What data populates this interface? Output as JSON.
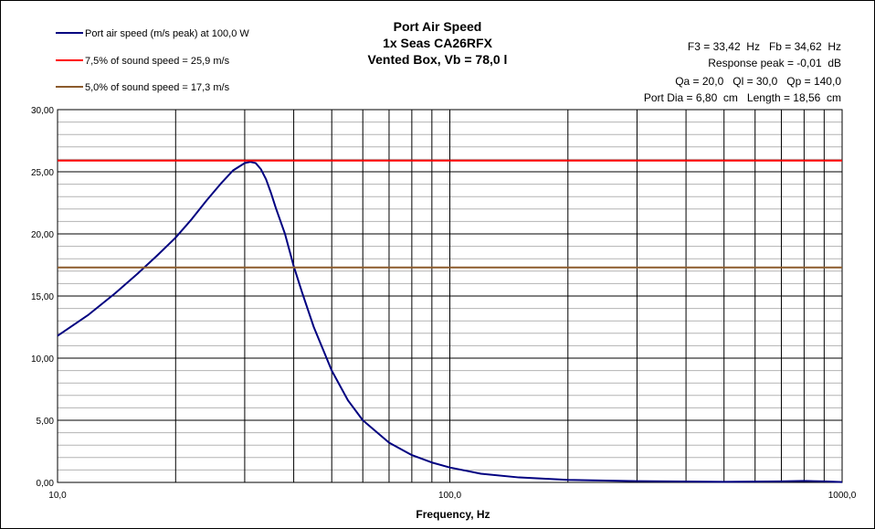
{
  "chart_data": {
    "type": "line",
    "title_lines": [
      "Port Air Speed",
      "1x Seas CA26RFX",
      "Vented Box, Vb = 78,0 l"
    ],
    "info_lines": [
      "F3 = 33,42  Hz   Fb = 34,62  Hz",
      "Response peak = -0,01  dB",
      "Qa = 20,0   Ql = 30,0   Qp = 140,0",
      "Port Dia = 6,80  cm   Length = 18,56  cm"
    ],
    "xlabel": "Frequency, Hz",
    "ylabel": "",
    "x_scale": "log",
    "xlim": [
      10,
      1000
    ],
    "ylim": [
      0,
      30
    ],
    "x_major_ticks": [
      {
        "value": 10,
        "label": "10,0"
      },
      {
        "value": 100,
        "label": "100,0"
      },
      {
        "value": 1000,
        "label": "1000,0"
      }
    ],
    "y_ticks": [
      {
        "value": 0,
        "label": "0,00"
      },
      {
        "value": 5,
        "label": "5,00"
      },
      {
        "value": 10,
        "label": "10,00"
      },
      {
        "value": 15,
        "label": "15,00"
      },
      {
        "value": 20,
        "label": "20,00"
      },
      {
        "value": 25,
        "label": "25,00"
      },
      {
        "value": 30,
        "label": "30,00"
      }
    ],
    "y_minor_step": 1,
    "grid": true,
    "legend_position": "top-left",
    "series": [
      {
        "name": "Port air speed (m/s peak) at 100,0 W",
        "color": "#000080",
        "x": [
          10,
          12,
          14,
          16,
          18,
          20,
          22,
          24,
          26,
          28,
          30,
          31,
          32,
          33,
          34,
          35,
          36,
          38,
          40,
          42,
          45,
          50,
          55,
          60,
          70,
          80,
          90,
          100,
          120,
          150,
          200,
          300,
          500,
          700,
          800,
          900,
          1000
        ],
        "y": [
          11.8,
          13.5,
          15.2,
          16.8,
          18.3,
          19.7,
          21.2,
          22.7,
          24.0,
          25.1,
          25.7,
          25.8,
          25.7,
          25.2,
          24.4,
          23.3,
          22.1,
          20.0,
          17.4,
          15.3,
          12.5,
          9.0,
          6.6,
          5.0,
          3.2,
          2.2,
          1.6,
          1.2,
          0.7,
          0.4,
          0.2,
          0.1,
          0.05,
          0.08,
          0.12,
          0.08,
          0.03
        ]
      },
      {
        "name": "7,5% of sound speed = 25,9 m/s",
        "color": "#ff0000",
        "constant": 25.9
      },
      {
        "name": "5,0% of sound speed = 17,3 m/s",
        "color": "#8b5a2b",
        "constant": 17.3
      }
    ]
  }
}
